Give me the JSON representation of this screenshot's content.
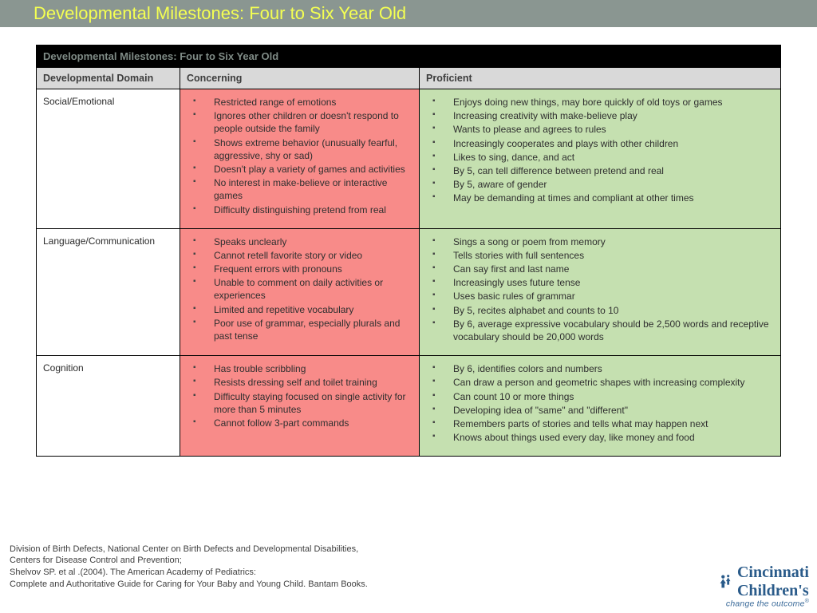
{
  "title_bar": {
    "text": "Developmental Milestones: Four to Six Year Old",
    "bg_color": "#8a9691",
    "text_color": "#f4ff52"
  },
  "table": {
    "caption": "Developmental Milestones: Four to Six Year Old",
    "headers": {
      "domain": "Developmental Domain",
      "concerning": "Concerning",
      "proficient": "Proficient"
    },
    "header_bg": "#d9d9d9",
    "concerning_bg": "#f88b89",
    "proficient_bg": "#c5e0b0",
    "rows": [
      {
        "domain": "Social/Emotional",
        "concerning": [
          "Restricted range of emotions",
          "Ignores other children or doesn't respond to people outside the family",
          "Shows extreme behavior (unusually fearful, aggressive, shy or sad)",
          "Doesn't play a variety of games and activities",
          "No interest in make-believe or interactive games",
          "Difficulty distinguishing pretend from real"
        ],
        "proficient": [
          "Enjoys doing new things, may bore quickly of old toys or games",
          "Increasing creativity with make-believe play",
          "Wants to please and agrees to rules",
          "Increasingly cooperates and plays with other children",
          "Likes to sing, dance, and act",
          "By 5, can tell difference between pretend and real",
          "By 5, aware of gender",
          "May be demanding at times and  compliant at other times"
        ]
      },
      {
        "domain": "Language/Communication",
        "concerning": [
          "Speaks unclearly",
          "Cannot retell favorite story or video",
          "Frequent errors with pronouns",
          "Unable to comment on daily activities or experiences",
          "Limited and repetitive vocabulary",
          "Poor use of grammar, especially plurals and past tense"
        ],
        "proficient": [
          "Sings a song or poem from memory",
          "Tells stories with full sentences",
          "Can say first and last name",
          "Increasingly uses future tense",
          "Uses basic rules of grammar",
          "By 5, recites alphabet and counts to 10",
          "By 6, average expressive vocabulary should be 2,500 words and receptive vocabulary should be 20,000 words"
        ]
      },
      {
        "domain": "Cognition",
        "concerning": [
          "Has trouble scribbling",
          "Resists dressing self and toilet training",
          "Difficulty staying focused on single activity for more than 5 minutes",
          "Cannot follow 3-part commands"
        ],
        "proficient": [
          "By 6, identifies colors and numbers",
          "Can draw a person and geometric shapes with increasing complexity",
          "Can count 10 or more things",
          "Developing idea of \"same\" and \"different\"",
          "Remembers parts of stories and tells what may happen next",
          "Knows about things used every day, like money and food"
        ]
      }
    ]
  },
  "citation": {
    "line1": "Division of Birth Defects, National Center on Birth Defects and Developmental Disabilities,",
    "line2": "Centers for Disease Control and Prevention;",
    "line3": "Shelvov SP. et al .(2004).  The American Academy of Pediatrics:",
    "line4": "Complete and Authoritative Guide for Caring for Your Baby and Young Child.  Bantam Books."
  },
  "logo": {
    "name1": "Cincinnati",
    "name2": "Children's",
    "tagline": "change the outcome",
    "color": "#2a5b8a"
  }
}
